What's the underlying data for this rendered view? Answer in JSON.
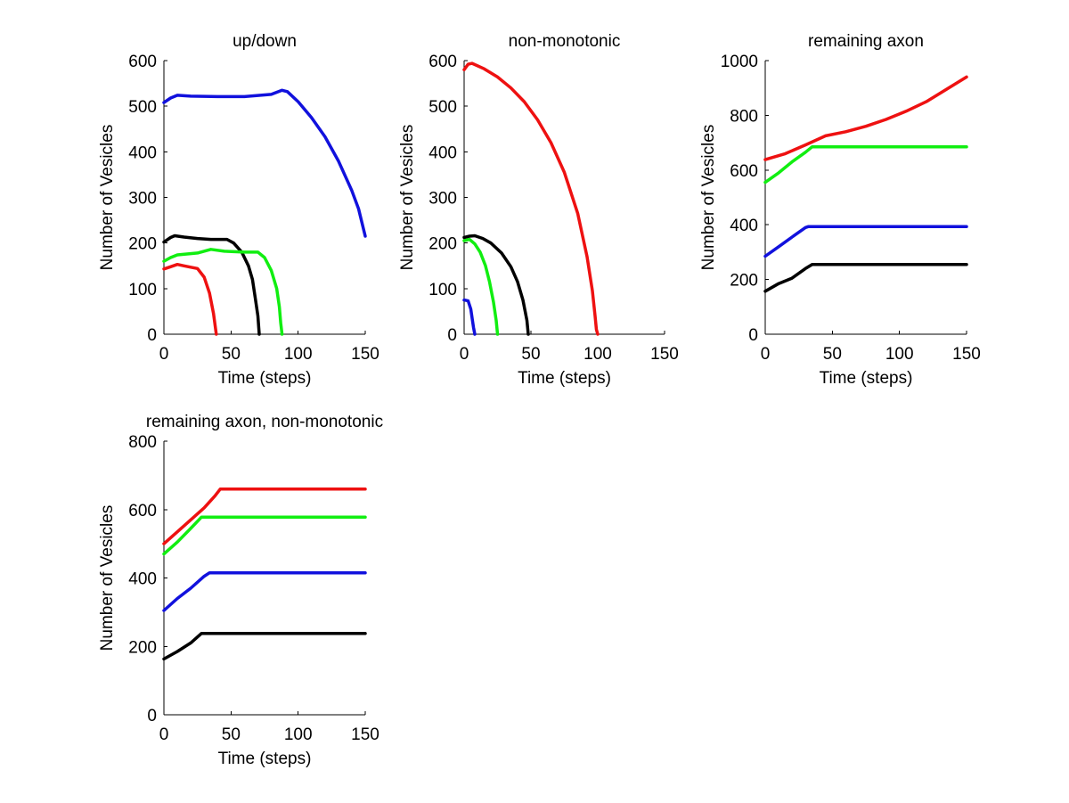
{
  "colors": {
    "red": "#ee1111",
    "green": "#11ee11",
    "blue": "#1111dd",
    "black": "#000000"
  },
  "chart_data": [
    {
      "type": "line",
      "title": "up/down",
      "xlabel": "Time (steps)",
      "ylabel": "Number of Vesicles",
      "xlim": [
        0,
        150
      ],
      "ylim": [
        0,
        600
      ],
      "xticks": [
        0,
        50,
        100,
        150
      ],
      "yticks": [
        0,
        100,
        200,
        300,
        400,
        500,
        600
      ],
      "series": [
        {
          "name": "blue",
          "color": "#1111dd",
          "points": [
            [
              0,
              508
            ],
            [
              5,
              518
            ],
            [
              10,
              524
            ],
            [
              20,
              522
            ],
            [
              40,
              521
            ],
            [
              60,
              521
            ],
            [
              80,
              526
            ],
            [
              88,
              535
            ],
            [
              92,
              532
            ],
            [
              100,
              510
            ],
            [
              110,
              475
            ],
            [
              120,
              433
            ],
            [
              130,
              380
            ],
            [
              140,
              315
            ],
            [
              145,
              275
            ],
            [
              150,
              215
            ]
          ]
        },
        {
          "name": "black",
          "color": "#000000",
          "points": [
            [
              0,
              202
            ],
            [
              5,
              212
            ],
            [
              8,
              216
            ],
            [
              15,
              213
            ],
            [
              25,
              210
            ],
            [
              35,
              208
            ],
            [
              47,
              208
            ],
            [
              52,
              200
            ],
            [
              58,
              180
            ],
            [
              63,
              150
            ],
            [
              66,
              120
            ],
            [
              68,
              80
            ],
            [
              70,
              40
            ],
            [
              71,
              0
            ]
          ]
        },
        {
          "name": "green",
          "color": "#11ee11",
          "points": [
            [
              0,
              160
            ],
            [
              5,
              168
            ],
            [
              10,
              174
            ],
            [
              25,
              178
            ],
            [
              35,
              186
            ],
            [
              45,
              182
            ],
            [
              60,
              180
            ],
            [
              70,
              180
            ],
            [
              75,
              168
            ],
            [
              80,
              140
            ],
            [
              84,
              100
            ],
            [
              86,
              60
            ],
            [
              87,
              25
            ],
            [
              88,
              0
            ]
          ]
        },
        {
          "name": "red",
          "color": "#ee1111",
          "points": [
            [
              0,
              143
            ],
            [
              5,
              148
            ],
            [
              10,
              153
            ],
            [
              15,
              150
            ],
            [
              20,
              147
            ],
            [
              25,
              144
            ],
            [
              30,
              125
            ],
            [
              34,
              90
            ],
            [
              37,
              45
            ],
            [
              39,
              0
            ]
          ]
        }
      ]
    },
    {
      "type": "line",
      "title": "non-monotonic",
      "xlabel": "Time (steps)",
      "ylabel": "Number of Vesicles",
      "xlim": [
        0,
        150
      ],
      "ylim": [
        0,
        600
      ],
      "xticks": [
        0,
        50,
        100,
        150
      ],
      "yticks": [
        0,
        100,
        200,
        300,
        400,
        500,
        600
      ],
      "series": [
        {
          "name": "red",
          "color": "#ee1111",
          "points": [
            [
              0,
              580
            ],
            [
              3,
              592
            ],
            [
              6,
              594
            ],
            [
              15,
              582
            ],
            [
              25,
              564
            ],
            [
              35,
              540
            ],
            [
              45,
              510
            ],
            [
              55,
              470
            ],
            [
              65,
              420
            ],
            [
              75,
              355
            ],
            [
              85,
              265
            ],
            [
              92,
              170
            ],
            [
              96,
              95
            ],
            [
              98,
              40
            ],
            [
              99,
              10
            ],
            [
              100,
              0
            ]
          ]
        },
        {
          "name": "black",
          "color": "#000000",
          "points": [
            [
              0,
              212
            ],
            [
              4,
              215
            ],
            [
              8,
              216
            ],
            [
              14,
              210
            ],
            [
              20,
              200
            ],
            [
              28,
              178
            ],
            [
              35,
              148
            ],
            [
              40,
              115
            ],
            [
              44,
              75
            ],
            [
              47,
              30
            ],
            [
              48,
              0
            ]
          ]
        },
        {
          "name": "green",
          "color": "#11ee11",
          "points": [
            [
              0,
              205
            ],
            [
              4,
              208
            ],
            [
              8,
              198
            ],
            [
              12,
              180
            ],
            [
              16,
              150
            ],
            [
              19,
              115
            ],
            [
              22,
              70
            ],
            [
              24,
              30
            ],
            [
              25,
              0
            ]
          ]
        },
        {
          "name": "blue",
          "color": "#1111dd",
          "points": [
            [
              0,
              75
            ],
            [
              3,
              73
            ],
            [
              5,
              55
            ],
            [
              6,
              35
            ],
            [
              7,
              15
            ],
            [
              8,
              0
            ]
          ]
        }
      ]
    },
    {
      "type": "line",
      "title": "remaining axon",
      "xlabel": "Time (steps)",
      "ylabel": "Number of Vesicles",
      "xlim": [
        0,
        150
      ],
      "ylim": [
        0,
        1000
      ],
      "xticks": [
        0,
        50,
        100,
        150
      ],
      "yticks": [
        0,
        200,
        400,
        600,
        800,
        1000
      ],
      "series": [
        {
          "name": "red",
          "color": "#ee1111",
          "points": [
            [
              0,
              638
            ],
            [
              15,
              660
            ],
            [
              30,
              692
            ],
            [
              45,
              725
            ],
            [
              60,
              740
            ],
            [
              75,
              760
            ],
            [
              90,
              785
            ],
            [
              105,
              815
            ],
            [
              120,
              850
            ],
            [
              135,
              895
            ],
            [
              150,
              940
            ]
          ]
        },
        {
          "name": "green",
          "color": "#11ee11",
          "points": [
            [
              0,
              555
            ],
            [
              10,
              590
            ],
            [
              20,
              630
            ],
            [
              30,
              665
            ],
            [
              35,
              685
            ],
            [
              150,
              685
            ]
          ]
        },
        {
          "name": "blue",
          "color": "#1111dd",
          "points": [
            [
              0,
              285
            ],
            [
              10,
              320
            ],
            [
              20,
              355
            ],
            [
              30,
              390
            ],
            [
              32,
              393
            ],
            [
              150,
              393
            ]
          ]
        },
        {
          "name": "black",
          "color": "#000000",
          "points": [
            [
              0,
              157
            ],
            [
              10,
              185
            ],
            [
              20,
              205
            ],
            [
              30,
              240
            ],
            [
              35,
              255
            ],
            [
              150,
              255
            ]
          ]
        }
      ]
    },
    {
      "type": "line",
      "title": "remaining axon, non-monotonic",
      "xlabel": "Time (steps)",
      "ylabel": "Number of Vesicles",
      "xlim": [
        0,
        150
      ],
      "ylim": [
        0,
        800
      ],
      "xticks": [
        0,
        50,
        100,
        150
      ],
      "yticks": [
        0,
        200,
        400,
        600,
        800
      ],
      "series": [
        {
          "name": "red",
          "color": "#ee1111",
          "points": [
            [
              0,
              500
            ],
            [
              10,
              535
            ],
            [
              20,
              570
            ],
            [
              30,
              605
            ],
            [
              38,
              640
            ],
            [
              42,
              660
            ],
            [
              150,
              660
            ]
          ]
        },
        {
          "name": "green",
          "color": "#11ee11",
          "points": [
            [
              0,
              470
            ],
            [
              10,
              505
            ],
            [
              20,
              545
            ],
            [
              28,
              578
            ],
            [
              150,
              578
            ]
          ]
        },
        {
          "name": "blue",
          "color": "#1111dd",
          "points": [
            [
              0,
              305
            ],
            [
              10,
              340
            ],
            [
              20,
              370
            ],
            [
              30,
              405
            ],
            [
              34,
              415
            ],
            [
              150,
              415
            ]
          ]
        },
        {
          "name": "black",
          "color": "#000000",
          "points": [
            [
              0,
              163
            ],
            [
              10,
              185
            ],
            [
              20,
              210
            ],
            [
              28,
              238
            ],
            [
              150,
              238
            ]
          ]
        }
      ]
    }
  ]
}
